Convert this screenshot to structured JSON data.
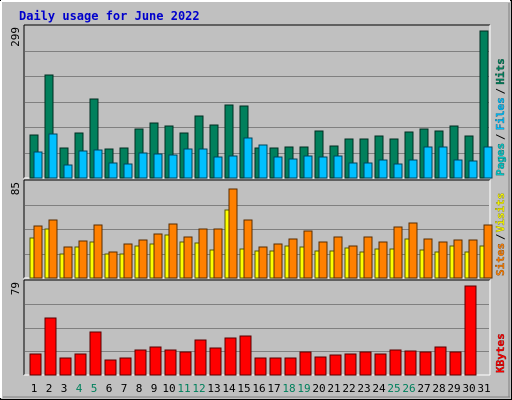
{
  "page": {
    "title": "Daily usage for June 2022"
  },
  "colors": {
    "background": "#c0c0c0",
    "title": "#0000cc",
    "hits": "#00805c",
    "files": "#00c0ff",
    "pages": "#00c8c8",
    "visits": "#ffff00",
    "sites": "#ff8000",
    "kbytes": "#ff0000",
    "gridline": "#808080",
    "weekend_day_label": "#00805c"
  },
  "chart_data": [
    {
      "type": "bar",
      "panel": "hits-files-pages",
      "title": "Daily usage for June 2022",
      "categories": [
        "1",
        "2",
        "3",
        "4",
        "5",
        "6",
        "7",
        "8",
        "9",
        "10",
        "11",
        "12",
        "13",
        "14",
        "15",
        "16",
        "17",
        "18",
        "19",
        "20",
        "21",
        "22",
        "23",
        "24",
        "25",
        "26",
        "27",
        "28",
        "29",
        "30",
        "31"
      ],
      "weekend_days": [
        "4",
        "5",
        "11",
        "12",
        "18",
        "19",
        "25",
        "26"
      ],
      "ymax_label": "299",
      "ylim": [
        0,
        299
      ],
      "legend": [
        "Pages",
        "Files",
        "Hits"
      ],
      "series": [
        {
          "name": "Hits",
          "values": [
            88,
            210,
            62,
            92,
            160,
            60,
            62,
            100,
            112,
            106,
            92,
            126,
            108,
            148,
            146,
            62,
            62,
            64,
            64,
            96,
            66,
            80,
            80,
            86,
            80,
            94,
            100,
            96,
            106,
            86,
            299
          ]
        },
        {
          "name": "Files",
          "values": [
            52,
            90,
            26,
            54,
            56,
            30,
            28,
            50,
            48,
            46,
            60,
            58,
            42,
            44,
            82,
            68,
            42,
            38,
            44,
            42,
            44,
            30,
            30,
            36,
            28,
            36,
            64,
            64,
            36,
            34,
            64
          ]
        },
        {
          "name": "Pages",
          "values": [
            10,
            16,
            6,
            10,
            12,
            6,
            6,
            10,
            10,
            10,
            10,
            12,
            8,
            8,
            14,
            16,
            6,
            6,
            6,
            6,
            6,
            6,
            6,
            6,
            6,
            6,
            10,
            10,
            6,
            6,
            12
          ]
        }
      ]
    },
    {
      "type": "bar",
      "panel": "visits-sites",
      "categories": [
        "1",
        "2",
        "3",
        "4",
        "5",
        "6",
        "7",
        "8",
        "9",
        "10",
        "11",
        "12",
        "13",
        "14",
        "15",
        "16",
        "17",
        "18",
        "19",
        "20",
        "21",
        "22",
        "23",
        "24",
        "25",
        "26",
        "27",
        "28",
        "29",
        "30",
        "31"
      ],
      "ymax_label": "85",
      "ylim": [
        0,
        85
      ],
      "legend": [
        "Sites",
        "Visits"
      ],
      "series": [
        {
          "name": "Visits",
          "values": [
            37,
            45,
            22,
            29,
            33,
            22,
            22,
            30,
            31,
            40,
            33,
            32,
            26,
            63,
            27,
            25,
            25,
            30,
            29,
            25,
            25,
            28,
            24,
            27,
            27,
            36,
            26,
            24,
            30,
            24,
            30
          ]
        },
        {
          "name": "Sites",
          "values": [
            48,
            54,
            29,
            34,
            49,
            24,
            31,
            35,
            41,
            50,
            38,
            45,
            45,
            82,
            54,
            29,
            31,
            36,
            43,
            33,
            38,
            30,
            38,
            33,
            47,
            51,
            36,
            33,
            35,
            35,
            49
          ]
        }
      ]
    },
    {
      "type": "bar",
      "panel": "kbytes",
      "categories": [
        "1",
        "2",
        "3",
        "4",
        "5",
        "6",
        "7",
        "8",
        "9",
        "10",
        "11",
        "12",
        "13",
        "14",
        "15",
        "16",
        "17",
        "18",
        "19",
        "20",
        "21",
        "22",
        "23",
        "24",
        "25",
        "26",
        "27",
        "28",
        "29",
        "30",
        "31"
      ],
      "ymax_label": "79",
      "ylim": [
        0,
        79
      ],
      "legend": [
        "KBytes"
      ],
      "series": [
        {
          "name": "KBytes",
          "values": [
            19,
            51,
            15,
            19,
            38,
            13,
            15,
            22,
            25,
            22,
            20,
            31,
            24,
            33,
            35,
            15,
            15,
            15,
            20,
            16,
            18,
            19,
            20,
            19,
            22,
            21,
            20,
            25,
            20,
            79,
            0
          ]
        }
      ]
    }
  ]
}
